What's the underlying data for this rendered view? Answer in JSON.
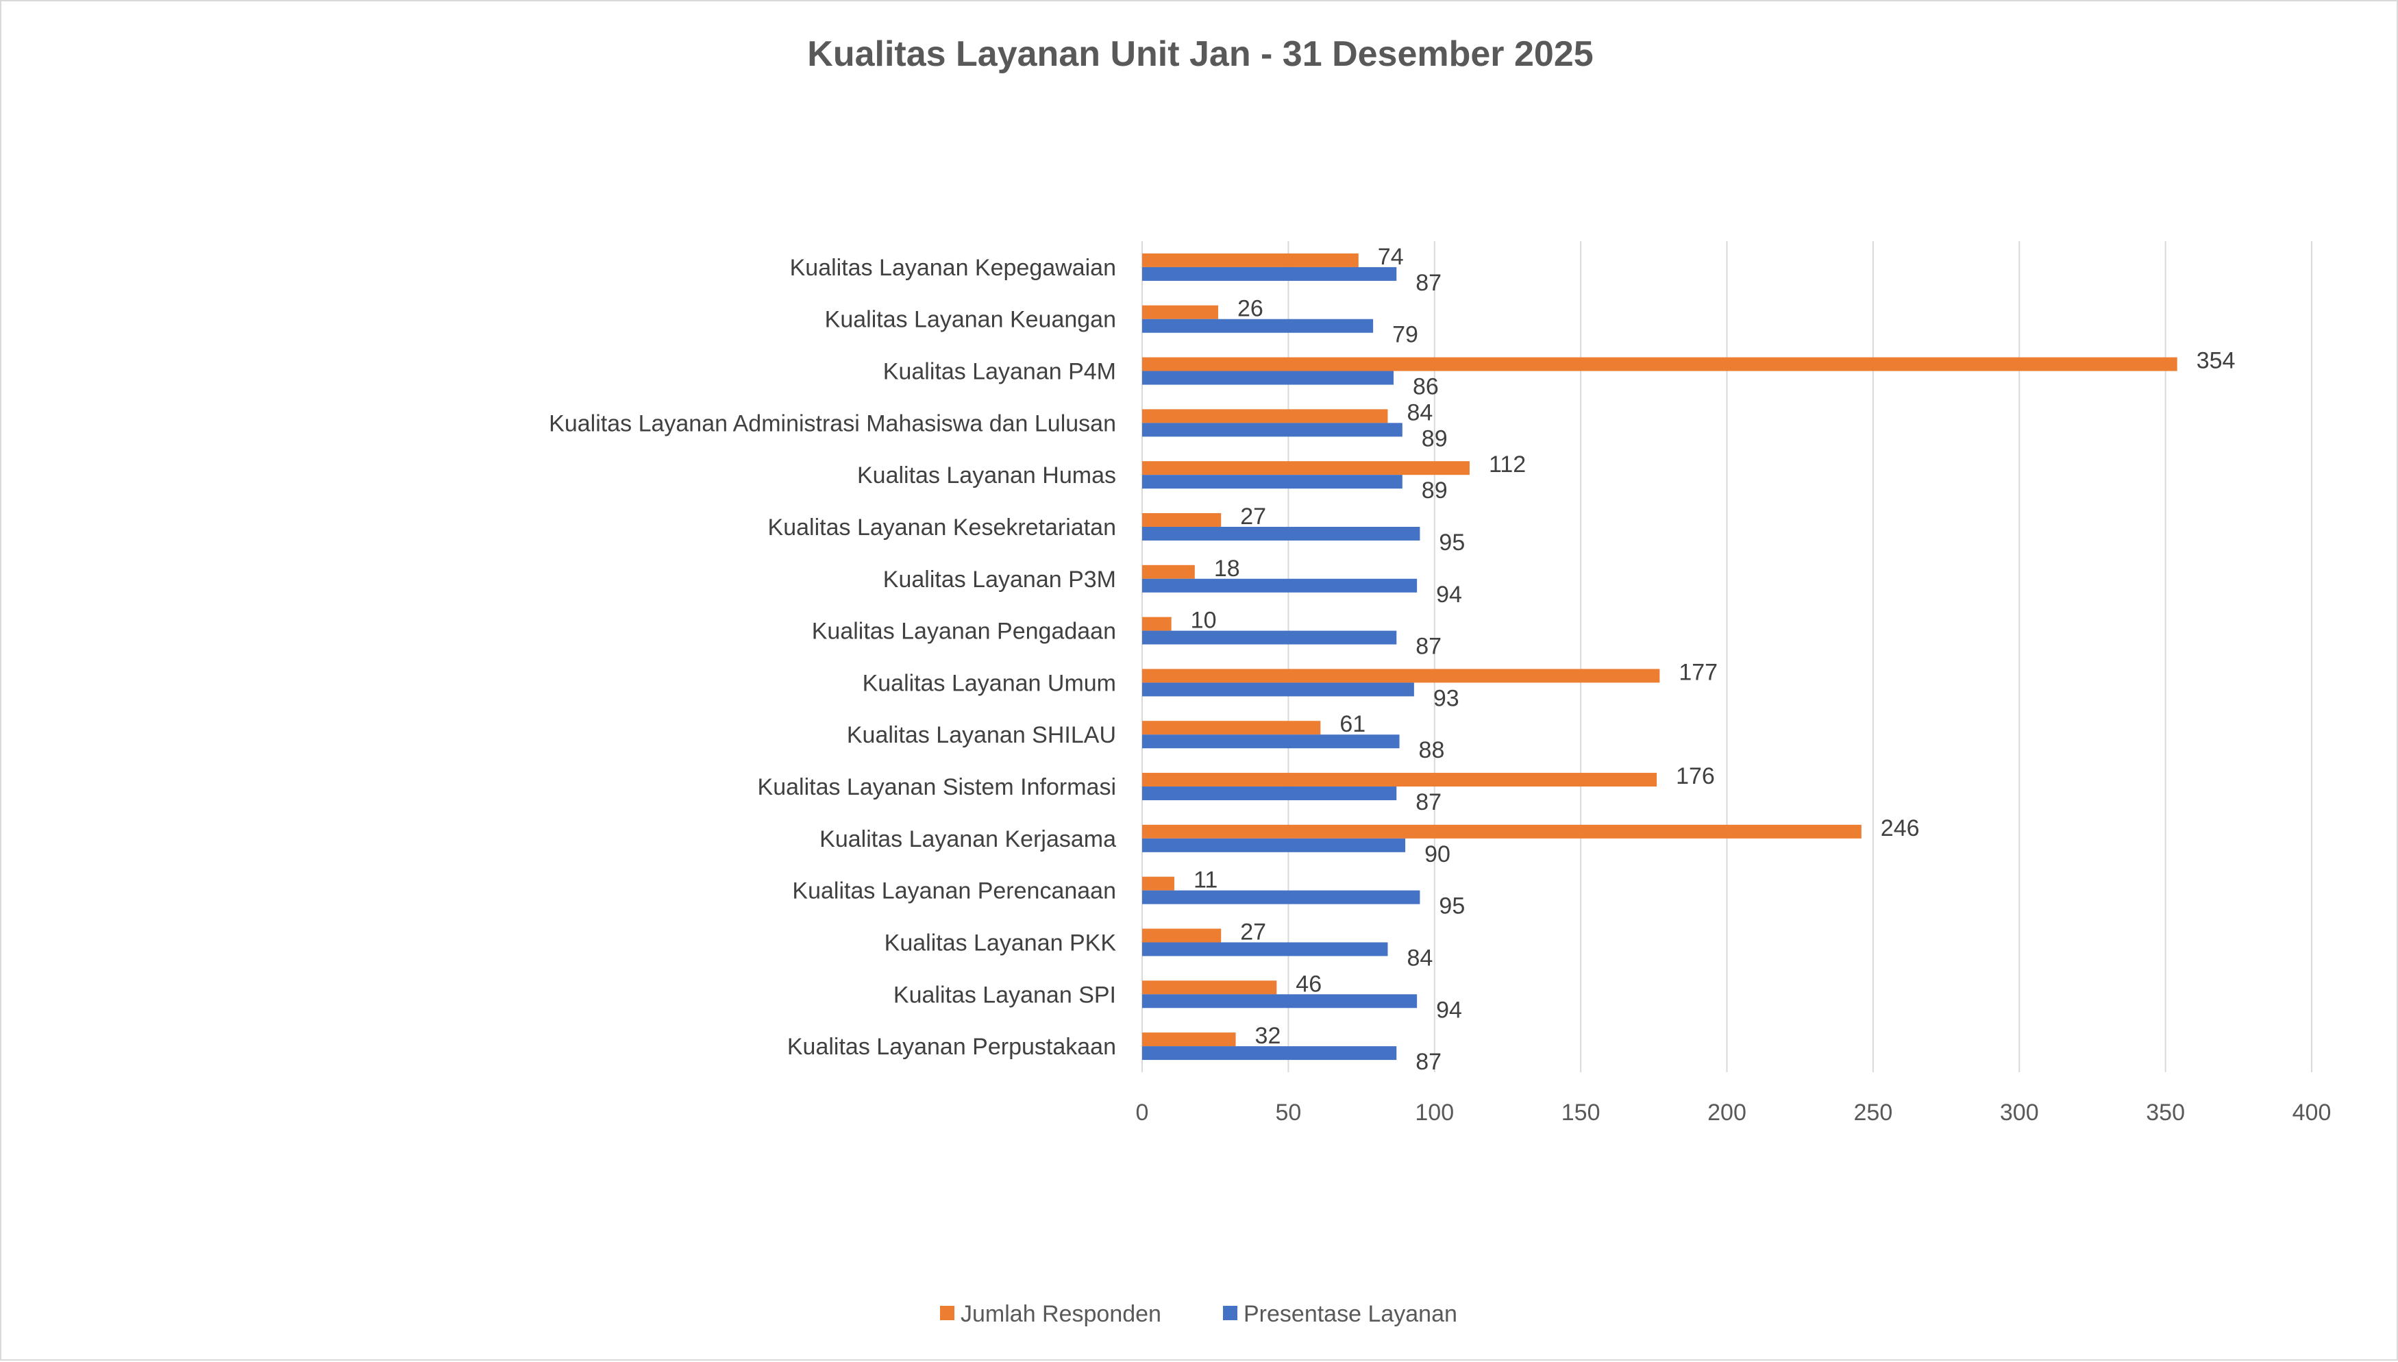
{
  "chart_data": {
    "type": "bar",
    "orientation": "horizontal",
    "title": "Kualitas Layanan Unit Jan - 31 Desember 2025",
    "xlabel": "",
    "ylabel": "",
    "xlim": [
      0,
      400
    ],
    "x_ticks": [
      0,
      50,
      100,
      150,
      200,
      250,
      300,
      350,
      400
    ],
    "grid": "vertical",
    "legend_position": "bottom",
    "categories": [
      "Kualitas Layanan Kepegawaian",
      "Kualitas Layanan Keuangan",
      "Kualitas Layanan P4M",
      "Kualitas Layanan Administrasi Mahasiswa dan Lulusan",
      "Kualitas Layanan Humas",
      "Kualitas Layanan Kesekretariatan",
      "Kualitas Layanan P3M",
      "Kualitas Layanan Pengadaan",
      "Kualitas Layanan Umum",
      "Kualitas Layanan SHILAU",
      "Kualitas Layanan Sistem Informasi",
      "Kualitas Layanan Kerjasama",
      "Kualitas Layanan Perencanaan",
      "Kualitas Layanan PKK",
      "Kualitas Layanan SPI",
      "Kualitas Layanan Perpustakaan"
    ],
    "series": [
      {
        "name": "Jumlah Responden",
        "color": "#ED7D31",
        "values": [
          74,
          26,
          354,
          84,
          112,
          27,
          18,
          10,
          177,
          61,
          176,
          246,
          11,
          27,
          46,
          32
        ]
      },
      {
        "name": "Presentase Layanan",
        "color": "#4472C4",
        "values": [
          87,
          79,
          86,
          89,
          89,
          95,
          94,
          87,
          93,
          88,
          87,
          90,
          95,
          84,
          94,
          87
        ]
      }
    ]
  }
}
